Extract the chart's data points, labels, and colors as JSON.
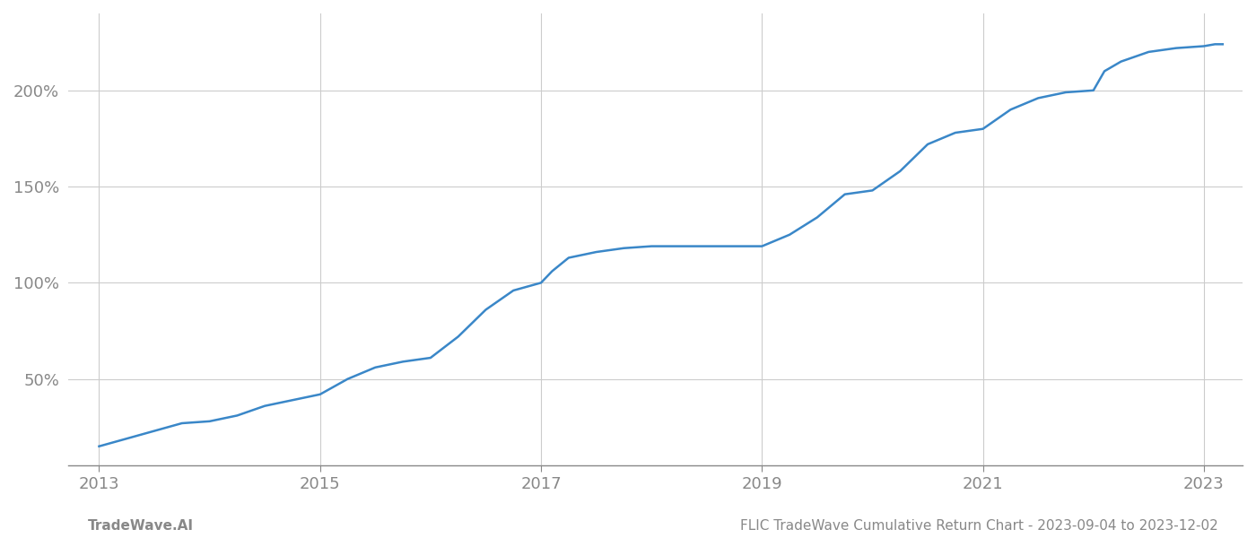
{
  "title": "FLIC TradeWave Cumulative Return Chart - 2023-09-04 to 2023-12-02",
  "watermark": "TradeWave.AI",
  "line_color": "#3a87c8",
  "background_color": "#ffffff",
  "grid_color": "#cccccc",
  "x_values": [
    2013.0,
    2013.25,
    2013.5,
    2013.75,
    2014.0,
    2014.25,
    2014.5,
    2014.75,
    2015.0,
    2015.25,
    2015.5,
    2015.75,
    2016.0,
    2016.25,
    2016.5,
    2016.75,
    2017.0,
    2017.1,
    2017.25,
    2017.5,
    2017.75,
    2018.0,
    2018.25,
    2018.5,
    2018.75,
    2019.0,
    2019.25,
    2019.5,
    2019.75,
    2020.0,
    2020.25,
    2020.5,
    2020.75,
    2021.0,
    2021.25,
    2021.5,
    2021.75,
    2022.0,
    2022.1,
    2022.25,
    2022.5,
    2022.75,
    2023.0,
    2023.1,
    2023.17
  ],
  "y_values": [
    15,
    19,
    23,
    27,
    28,
    31,
    36,
    39,
    42,
    50,
    56,
    59,
    61,
    72,
    86,
    96,
    100,
    106,
    113,
    116,
    118,
    119,
    119,
    119,
    119,
    119,
    125,
    134,
    146,
    148,
    158,
    172,
    178,
    180,
    190,
    196,
    199,
    200,
    210,
    215,
    220,
    222,
    223,
    224,
    224
  ],
  "xlim": [
    2012.72,
    2023.35
  ],
  "ylim": [
    5,
    240
  ],
  "yticks": [
    50,
    100,
    150,
    200
  ],
  "xticks": [
    2013,
    2015,
    2017,
    2019,
    2021,
    2023
  ],
  "line_width": 1.8,
  "tick_color": "#888888",
  "tick_fontsize": 13,
  "footer_fontsize": 11,
  "title_fontsize": 11
}
